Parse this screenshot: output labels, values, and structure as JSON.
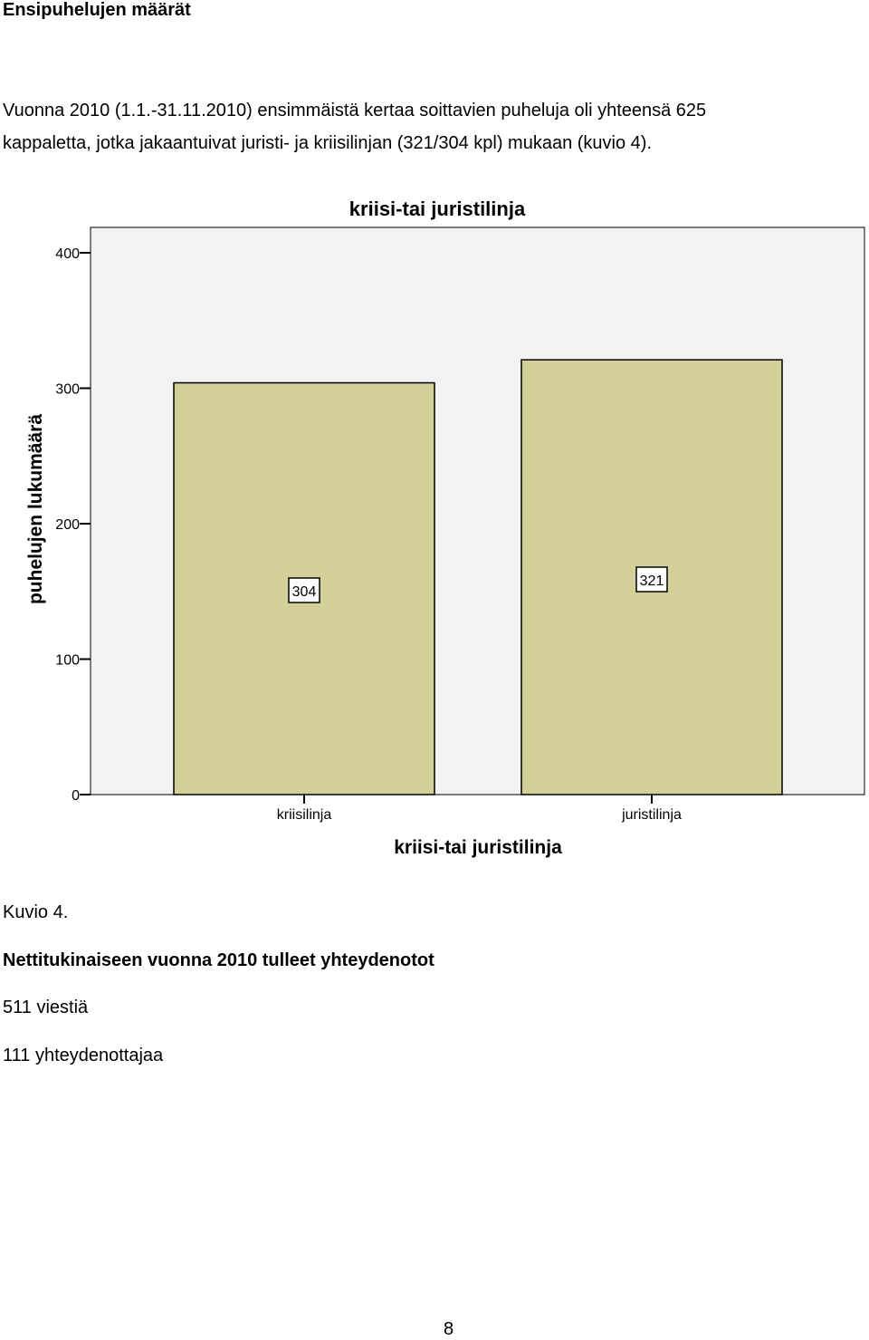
{
  "document": {
    "heading": "Ensipuhelujen määrät",
    "paragraph_line1": "Vuonna 2010 (1.1.-31.11.2010) ensimmäistä kertaa soittavien puheluja oli yhteensä 625",
    "paragraph_line2": "kappaletta, jotka jakaantuivat juristi- ja kriisilinjan (321/304 kpl) mukaan (kuvio 4).",
    "figure_caption": "Kuvio 4.",
    "section_title": "Nettitukinaiseen vuonna 2010 tulleet yhteydenotot",
    "stat_messages": "511 viestiä",
    "stat_contacts": "111 yhteydenottajaa",
    "page_number": "8"
  },
  "chart_data": {
    "type": "bar",
    "title": "kriisi-tai juristilinja",
    "xlabel": "kriisi-tai juristilinja",
    "ylabel": "puhelujen lukumäärä",
    "categories": [
      "kriisilinja",
      "juristilinja"
    ],
    "values": [
      304,
      321
    ],
    "data_labels": [
      "304",
      "321"
    ],
    "ylim": [
      0,
      400
    ],
    "yticks": [
      0,
      100,
      200,
      300,
      400
    ],
    "ytick_labels": [
      "0",
      "100",
      "200",
      "300",
      "400"
    ],
    "grid": false,
    "legend": "none",
    "colors": {
      "bar_fill": "#d3cf98",
      "plot_background": "#f2f2f2",
      "axis": "#000000"
    }
  }
}
